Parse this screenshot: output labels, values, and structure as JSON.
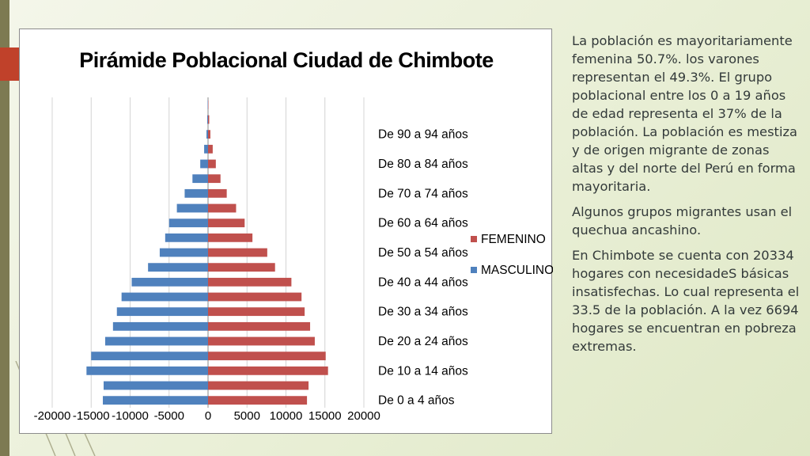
{
  "slide": {
    "paragraphs": [
      "La población es mayoritariamente femenina 50.7%. los varones  representan el 49.3%. El grupo poblacional entre los 0 a 19 años de edad representa el 37% de la población. La población es mestiza y de origen migrante de zonas altas y del norte del Perú en forma mayoritaria.",
      "Algunos grupos migrantes usan el quechua ancashino.",
      "En Chimbote se cuenta con 20334 hogares con necesidadeS básicas insatisfechas. Lo cual representa el 33.5 de la población. A la vez 6694 hogares se encuentran en pobreza extremas."
    ],
    "colors": {
      "accent": "#c0412a",
      "frame": "#7d7a52"
    }
  },
  "chart_data": {
    "type": "bar",
    "orientation": "horizontal",
    "stacked_mirror": true,
    "title": "Pirámide Poblacional Ciudad de Chimbote",
    "xlabel": "",
    "ylabel": "",
    "xlim": [
      -20000,
      20000
    ],
    "x_ticks": [
      "-20000",
      "-15000",
      "-10000",
      "-5000",
      "0",
      "5000",
      "10000",
      "15000",
      "20000"
    ],
    "x_tick_values": [
      -20000,
      -15000,
      -10000,
      -5000,
      0,
      5000,
      10000,
      15000,
      20000
    ],
    "grid": "vertical",
    "legend_position": "right",
    "category_labels": [
      "De  0 a 4  años",
      "De 10 a 14 años",
      "De 20 a 24 años",
      "De 30 a 34 años",
      "De 40 a 44 años",
      "De 50 a 54 años",
      "De 60 a 64 años",
      "De 70 a 74 años",
      "De 80 a 84 años",
      "De 90 a 94 años"
    ],
    "categories": [
      "0-4",
      "5-9",
      "10-14",
      "15-19",
      "20-24",
      "25-29",
      "30-34",
      "35-39",
      "40-44",
      "45-49",
      "50-54",
      "55-59",
      "60-64",
      "65-69",
      "70-74",
      "75-79",
      "80-84",
      "85-89",
      "90-94",
      "95-99",
      "100+"
    ],
    "series": [
      {
        "name": "FEMENINO",
        "color": "#c0504d",
        "values": [
          12700,
          12900,
          15400,
          15100,
          13700,
          13100,
          12400,
          12000,
          10700,
          8600,
          7600,
          5700,
          4700,
          3600,
          2400,
          1600,
          1000,
          600,
          300,
          150,
          50
        ]
      },
      {
        "name": "MASCULINO",
        "color": "#4f81bd",
        "values": [
          -13500,
          -13400,
          -15600,
          -15000,
          -13200,
          -12200,
          -11700,
          -11100,
          -9800,
          -7700,
          -6200,
          -5500,
          -5000,
          -4000,
          -3000,
          -2000,
          -1000,
          -500,
          -200,
          -100,
          -50
        ]
      }
    ]
  }
}
